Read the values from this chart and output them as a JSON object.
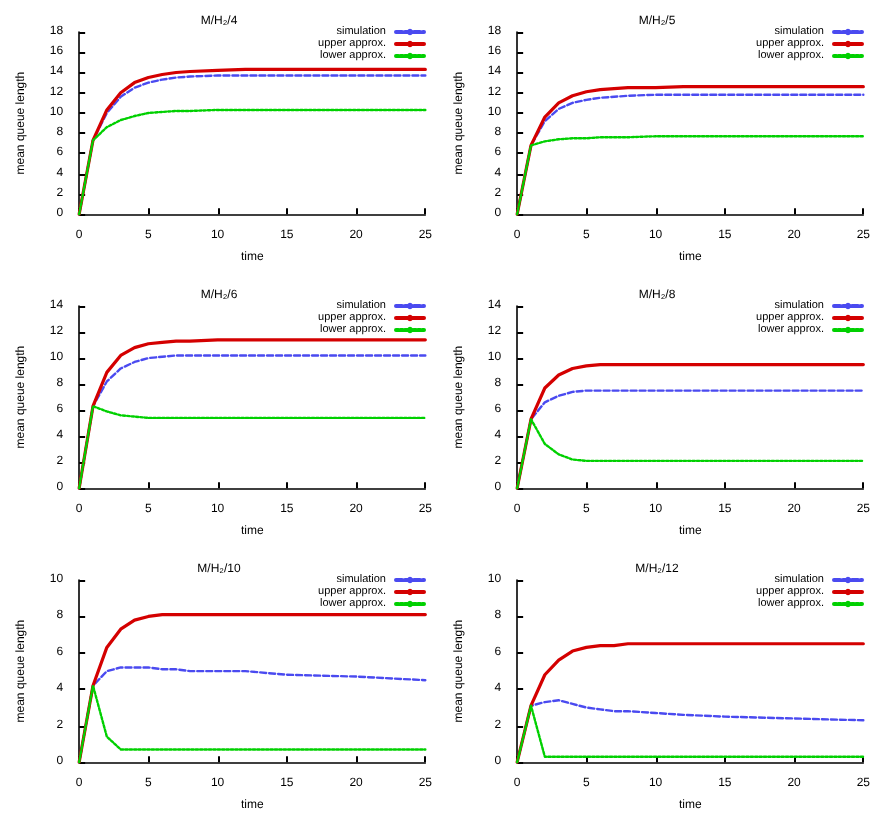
{
  "chart_data": [
    {
      "type": "line",
      "title": "M/H₂/4",
      "xlabel": "time",
      "ylabel": "mean queue length",
      "x": [
        0,
        1,
        2,
        3,
        4,
        5,
        6,
        7,
        8,
        10,
        12,
        15,
        20,
        25
      ],
      "xlim": [
        0,
        25
      ],
      "xticks": [
        0,
        5,
        10,
        15,
        20,
        25
      ],
      "ylim": [
        0,
        18
      ],
      "yticks": [
        0,
        2,
        4,
        6,
        8,
        10,
        12,
        14,
        16,
        18
      ],
      "legend": "top right",
      "grid": false,
      "marker": "none",
      "series": [
        {
          "name": "simulation",
          "color": "#4a4af0",
          "line_style": "dashed",
          "values": [
            0,
            7.3,
            10,
            11.6,
            12.5,
            13,
            13.3,
            13.5,
            13.6,
            13.7,
            13.7,
            13.7,
            13.7,
            13.7
          ]
        },
        {
          "name": "upper approx.",
          "color": "#d40000",
          "line_style": "solid",
          "values": [
            0,
            7.3,
            10.3,
            12,
            13,
            13.5,
            13.8,
            14,
            14.1,
            14.2,
            14.3,
            14.3,
            14.3,
            14.3
          ]
        },
        {
          "name": "lower approx.",
          "color": "#00d000",
          "line_style": "dotted",
          "values": [
            0,
            7.3,
            8.6,
            9.3,
            9.7,
            10,
            10.1,
            10.2,
            10.2,
            10.3,
            10.3,
            10.3,
            10.3,
            10.3
          ]
        }
      ]
    },
    {
      "type": "line",
      "title": "M/H₂/5",
      "xlabel": "time",
      "ylabel": "mean queue length",
      "x": [
        0,
        1,
        2,
        3,
        4,
        5,
        6,
        7,
        8,
        10,
        12,
        15,
        20,
        25
      ],
      "xlim": [
        0,
        25
      ],
      "xticks": [
        0,
        5,
        10,
        15,
        20,
        25
      ],
      "ylim": [
        0,
        18
      ],
      "yticks": [
        0,
        2,
        4,
        6,
        8,
        10,
        12,
        14,
        16,
        18
      ],
      "legend": "top right",
      "grid": false,
      "marker": "none",
      "series": [
        {
          "name": "simulation",
          "color": "#4a4af0",
          "line_style": "dashed",
          "values": [
            0,
            6.8,
            9.2,
            10.4,
            11,
            11.3,
            11.5,
            11.6,
            11.7,
            11.8,
            11.8,
            11.8,
            11.8,
            11.8
          ]
        },
        {
          "name": "upper approx.",
          "color": "#d40000",
          "line_style": "solid",
          "values": [
            0,
            6.8,
            9.6,
            11,
            11.7,
            12.1,
            12.3,
            12.4,
            12.5,
            12.5,
            12.6,
            12.6,
            12.6,
            12.6
          ]
        },
        {
          "name": "lower approx.",
          "color": "#00d000",
          "line_style": "dotted",
          "values": [
            0,
            6.8,
            7.2,
            7.4,
            7.5,
            7.5,
            7.6,
            7.6,
            7.6,
            7.7,
            7.7,
            7.7,
            7.7,
            7.7
          ]
        }
      ]
    },
    {
      "type": "line",
      "title": "M/H₂/6",
      "xlabel": "time",
      "ylabel": "mean queue length",
      "x": [
        0,
        1,
        2,
        3,
        4,
        5,
        6,
        7,
        8,
        10,
        12,
        15,
        20,
        25
      ],
      "xlim": [
        0,
        25
      ],
      "xticks": [
        0,
        5,
        10,
        15,
        20,
        25
      ],
      "ylim": [
        0,
        14
      ],
      "yticks": [
        0,
        2,
        4,
        6,
        8,
        10,
        12,
        14
      ],
      "legend": "top right",
      "grid": false,
      "marker": "none",
      "series": [
        {
          "name": "simulation",
          "color": "#4a4af0",
          "line_style": "dashed",
          "values": [
            0,
            6.3,
            8.2,
            9.2,
            9.7,
            10,
            10.1,
            10.2,
            10.2,
            10.2,
            10.2,
            10.2,
            10.2,
            10.2
          ]
        },
        {
          "name": "upper approx.",
          "color": "#d40000",
          "line_style": "solid",
          "values": [
            0,
            6.3,
            8.9,
            10.2,
            10.8,
            11.1,
            11.2,
            11.3,
            11.3,
            11.4,
            11.4,
            11.4,
            11.4,
            11.4
          ]
        },
        {
          "name": "lower approx.",
          "color": "#00d000",
          "line_style": "dotted",
          "values": [
            0,
            6.3,
            5.9,
            5.6,
            5.5,
            5.4,
            5.4,
            5.4,
            5.4,
            5.4,
            5.4,
            5.4,
            5.4,
            5.4
          ]
        }
      ]
    },
    {
      "type": "line",
      "title": "M/H₂/8",
      "xlabel": "time",
      "ylabel": "mean queue length",
      "x": [
        0,
        1,
        2,
        3,
        4,
        5,
        6,
        7,
        8,
        10,
        12,
        15,
        20,
        25
      ],
      "xlim": [
        0,
        25
      ],
      "xticks": [
        0,
        5,
        10,
        15,
        20,
        25
      ],
      "ylim": [
        0,
        14
      ],
      "yticks": [
        0,
        2,
        4,
        6,
        8,
        10,
        12,
        14
      ],
      "legend": "top right",
      "grid": false,
      "marker": "none",
      "series": [
        {
          "name": "simulation",
          "color": "#4a4af0",
          "line_style": "dashed",
          "values": [
            0,
            5.3,
            6.6,
            7.1,
            7.4,
            7.5,
            7.5,
            7.5,
            7.5,
            7.5,
            7.5,
            7.5,
            7.5,
            7.5
          ]
        },
        {
          "name": "upper approx.",
          "color": "#d40000",
          "line_style": "solid",
          "values": [
            0,
            5.3,
            7.7,
            8.7,
            9.2,
            9.4,
            9.5,
            9.5,
            9.5,
            9.5,
            9.5,
            9.5,
            9.5,
            9.5
          ]
        },
        {
          "name": "lower approx.",
          "color": "#00d000",
          "line_style": "dotted",
          "values": [
            0,
            5.3,
            3.4,
            2.6,
            2.2,
            2.1,
            2.1,
            2.1,
            2.1,
            2.1,
            2.1,
            2.1,
            2.1,
            2.1
          ]
        }
      ]
    },
    {
      "type": "line",
      "title": "M/H₂/10",
      "xlabel": "time",
      "ylabel": "mean queue length",
      "x": [
        0,
        1,
        2,
        3,
        4,
        5,
        6,
        7,
        8,
        10,
        12,
        15,
        20,
        25
      ],
      "xlim": [
        0,
        25
      ],
      "xticks": [
        0,
        5,
        10,
        15,
        20,
        25
      ],
      "ylim": [
        0,
        10
      ],
      "yticks": [
        0,
        2,
        4,
        6,
        8,
        10
      ],
      "legend": "top right",
      "grid": false,
      "marker": "none",
      "series": [
        {
          "name": "simulation",
          "color": "#4a4af0",
          "line_style": "dashed",
          "values": [
            0,
            4.2,
            5,
            5.2,
            5.2,
            5.2,
            5.1,
            5.1,
            5,
            5,
            5,
            4.8,
            4.7,
            4.5
          ]
        },
        {
          "name": "upper approx.",
          "color": "#d40000",
          "line_style": "solid",
          "values": [
            0,
            4.2,
            6.3,
            7.3,
            7.8,
            8,
            8.1,
            8.1,
            8.1,
            8.1,
            8.1,
            8.1,
            8.1,
            8.1
          ]
        },
        {
          "name": "lower approx.",
          "color": "#00d000",
          "line_style": "dotted",
          "values": [
            0,
            4.2,
            1.4,
            0.7,
            0.7,
            0.7,
            0.7,
            0.7,
            0.7,
            0.7,
            0.7,
            0.7,
            0.7,
            0.7
          ]
        }
      ]
    },
    {
      "type": "line",
      "title": "M/H₂/12",
      "xlabel": "time",
      "ylabel": "mean queue length",
      "x": [
        0,
        1,
        2,
        3,
        4,
        5,
        6,
        7,
        8,
        10,
        12,
        15,
        20,
        25
      ],
      "xlim": [
        0,
        25
      ],
      "xticks": [
        0,
        5,
        10,
        15,
        20,
        25
      ],
      "ylim": [
        0,
        10
      ],
      "yticks": [
        0,
        2,
        4,
        6,
        8,
        10
      ],
      "legend": "top right",
      "grid": false,
      "marker": "none",
      "series": [
        {
          "name": "simulation",
          "color": "#4a4af0",
          "line_style": "dashed",
          "values": [
            0,
            3.1,
            3.3,
            3.4,
            3.2,
            3,
            2.9,
            2.8,
            2.8,
            2.7,
            2.6,
            2.5,
            2.4,
            2.3
          ]
        },
        {
          "name": "upper approx.",
          "color": "#d40000",
          "line_style": "solid",
          "values": [
            0,
            3.1,
            4.8,
            5.6,
            6.1,
            6.3,
            6.4,
            6.4,
            6.5,
            6.5,
            6.5,
            6.5,
            6.5,
            6.5
          ]
        },
        {
          "name": "lower approx.",
          "color": "#00d000",
          "line_style": "dotted",
          "values": [
            0,
            3.1,
            0.3,
            0.3,
            0.3,
            0.3,
            0.3,
            0.3,
            0.3,
            0.3,
            0.3,
            0.3,
            0.3,
            0.3
          ]
        }
      ]
    }
  ]
}
